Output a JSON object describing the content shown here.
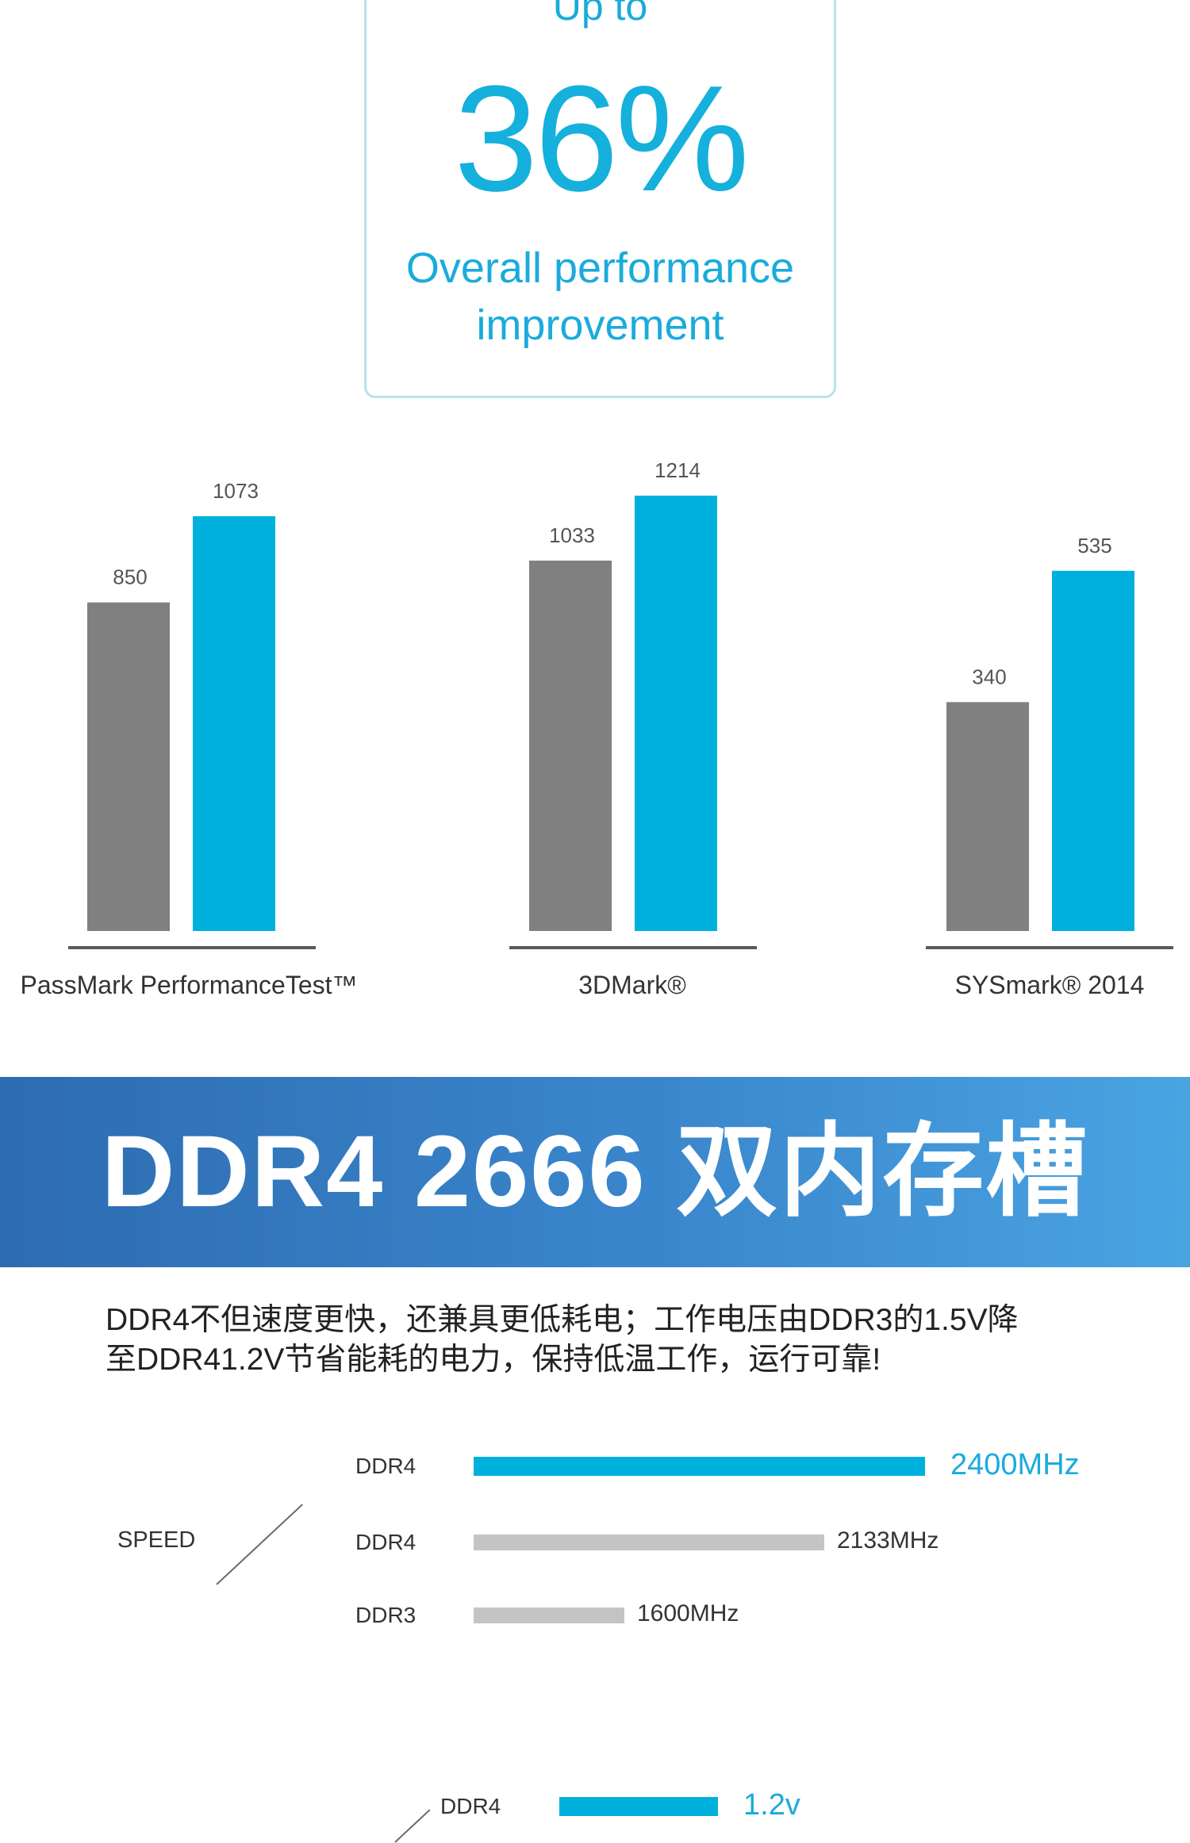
{
  "hero": {
    "upto": "Up to",
    "percent": "36%",
    "description_line1": "Overall performance",
    "description_line2": "improvement"
  },
  "chart_data": {
    "type": "bar",
    "categories": [
      "PassMark  PerformanceTest™",
      "3DMark®",
      "SYSmark® 2014"
    ],
    "series": [
      {
        "values": [
          850,
          1033,
          340
        ],
        "color": "#808080"
      },
      {
        "values": [
          1073,
          1214,
          535
        ],
        "color": "#00b0dc"
      }
    ],
    "title": "",
    "xlabel": "",
    "ylabel": "",
    "grid": false,
    "legend": "none"
  },
  "banner": {
    "title": "DDR4 2666 双内存槽"
  },
  "description": "DDR4不但速度更快，还兼具更低耗电；工作电压由DDR3的1.5V降\n至DDR41.2V节省能耗的电力，保持低温工作，运行可靠!",
  "speed": {
    "label": "SPEED",
    "rows": [
      {
        "name": "DDR4",
        "value": "2400MHz",
        "mhz": 2400,
        "color": "#00b0dc"
      },
      {
        "name": "DDR4",
        "value": "2133MHz",
        "mhz": 2133,
        "color": "#c4c4c4"
      },
      {
        "name": "DDR3",
        "value": "1600MHz",
        "mhz": 1600,
        "color": "#c4c4c4"
      }
    ]
  },
  "voltage": {
    "rows": [
      {
        "name": "DDR4",
        "value": "1.2v",
        "volts": 1.2,
        "color": "#00b0dc"
      }
    ]
  }
}
